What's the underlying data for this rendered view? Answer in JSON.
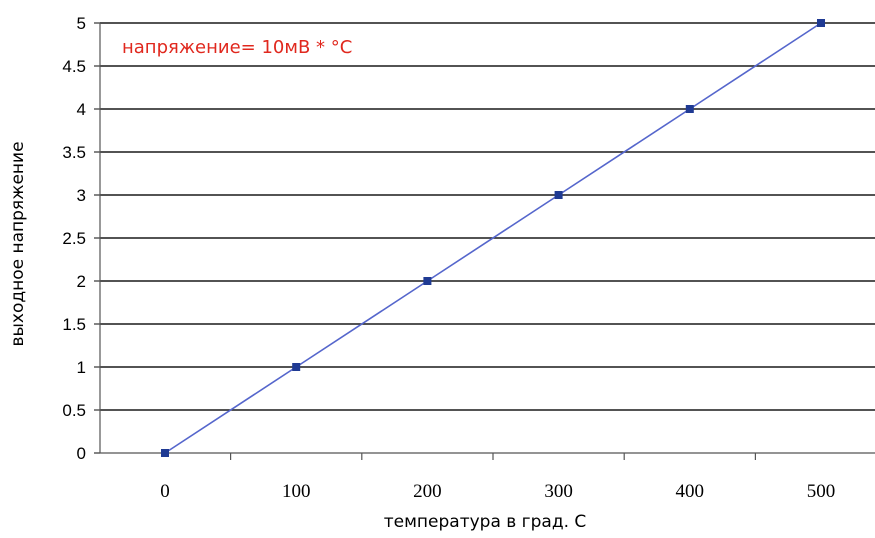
{
  "chart_data": {
    "type": "line",
    "x": [
      0,
      100,
      200,
      300,
      400,
      500
    ],
    "series": [
      {
        "values": [
          0,
          1,
          2,
          3,
          4,
          5
        ]
      }
    ],
    "xlabel": "температура в град. С",
    "ylabel": "выходное напряжение",
    "x_ticks": [
      "0",
      "100",
      "200",
      "300",
      "400",
      "500"
    ],
    "y_ticks": [
      "0",
      "0.5",
      "1",
      "1.5",
      "2",
      "2.5",
      "3",
      "3.5",
      "4",
      "4.5",
      "5"
    ],
    "ylim": [
      0,
      5
    ],
    "grid": "horizontal",
    "annotation": "напряжение= 10мВ * °C",
    "colors": {
      "line": "#5566cc",
      "marker": "#1f3a93",
      "grid": "#1a1a1a",
      "annotation": "#e0281e"
    }
  }
}
